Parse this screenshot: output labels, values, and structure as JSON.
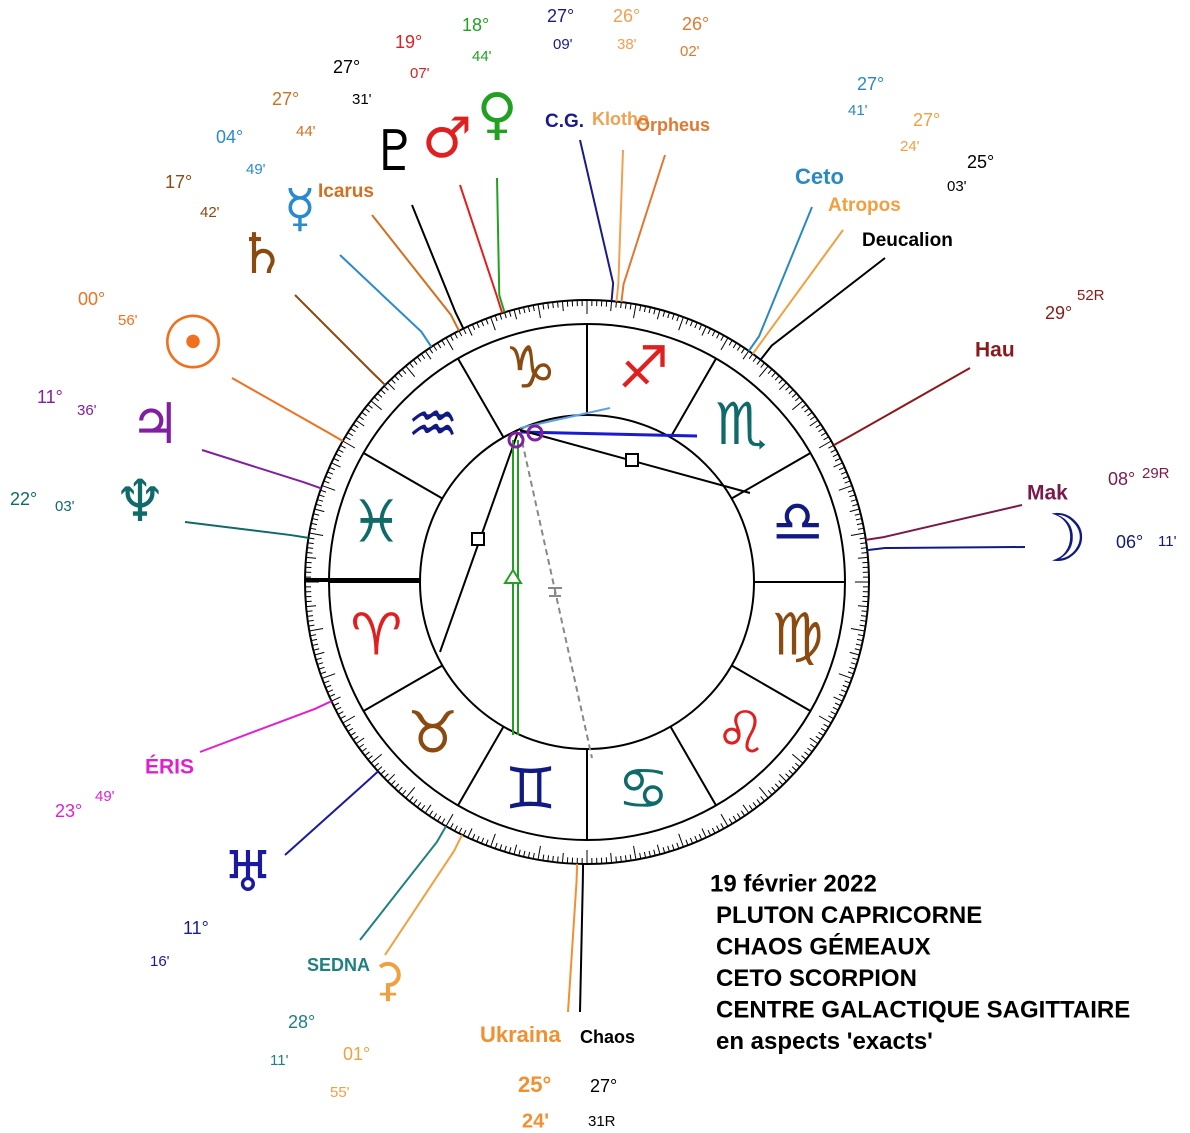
{
  "signs": [
    {
      "glyph": "♑",
      "color": "#8a4a10"
    },
    {
      "glyph": "♐",
      "color": "#e02020"
    },
    {
      "glyph": "♏",
      "color": "#106a6a"
    },
    {
      "glyph": "♎",
      "color": "#101a80"
    },
    {
      "glyph": "♍",
      "color": "#8a4a10"
    },
    {
      "glyph": "♌",
      "color": "#e02020"
    },
    {
      "glyph": "♋",
      "color": "#106a6a"
    },
    {
      "glyph": "♊",
      "color": "#101a80"
    },
    {
      "glyph": "♉",
      "color": "#8a4a10"
    },
    {
      "glyph": "♈",
      "color": "#e02020"
    },
    {
      "glyph": "♓",
      "color": "#106a6a"
    },
    {
      "glyph": "♒",
      "color": "#101a80"
    }
  ],
  "bodies": [
    {
      "label": "C.G.",
      "deg": "27°",
      "min": "09'",
      "color": "#1a1a8c"
    },
    {
      "label": "Klotho",
      "deg": "26°",
      "min": "38'",
      "color": "#f0a050"
    },
    {
      "label": "Orpheus",
      "deg": "26°",
      "min": "02'",
      "color": "#e07830"
    },
    {
      "label": "♀",
      "deg": "18°",
      "min": "44'",
      "color": "#22a022"
    },
    {
      "label": "♂",
      "deg": "19°",
      "min": "07'",
      "color": "#e02020"
    },
    {
      "label": "♇",
      "deg": "27°",
      "min": "31'",
      "color": "#000000"
    },
    {
      "label": "Icarus",
      "deg": "27°",
      "min": "44'",
      "color": "#d07020"
    },
    {
      "label": "☿",
      "deg": "04°",
      "min": "49'",
      "color": "#2a8ad0"
    },
    {
      "label": "♄",
      "deg": "17°",
      "min": "42'",
      "color": "#8a4a10"
    },
    {
      "label": "☉",
      "deg": "00°",
      "min": "56'",
      "color": "#f07020"
    },
    {
      "label": "♃",
      "deg": "11°",
      "min": "36'",
      "color": "#8020a0"
    },
    {
      "label": "♆",
      "deg": "22°",
      "min": "03'",
      "color": "#106a6a"
    },
    {
      "label": "Ceto",
      "deg": "27°",
      "min": "41'",
      "color": "#2a8ac0"
    },
    {
      "label": "Atropos",
      "deg": "27°",
      "min": "24'",
      "color": "#f0a040"
    },
    {
      "label": "Deucalion",
      "deg": "25°",
      "min": "03'",
      "color": "#000000"
    },
    {
      "label": "Hau",
      "deg": "29°",
      "min": "52R",
      "color": "#8a1a1a"
    },
    {
      "label": "Mak",
      "deg": "08°",
      "min": "29R",
      "color": "#7a1a4a"
    },
    {
      "label": "☽",
      "deg": "06°",
      "min": "11'",
      "color": "#101a80"
    },
    {
      "label": "ÉRIS",
      "deg": "23°",
      "min": "49'",
      "color": "#e020d0"
    },
    {
      "label": "♅",
      "deg": "11°",
      "min": "16'",
      "color": "#1a1aa0"
    },
    {
      "label": "SEDNA",
      "deg": "28°",
      "min": "11'",
      "color": "#208080"
    },
    {
      "label": "⚳",
      "deg": "01°",
      "min": "55'",
      "color": "#f0a040"
    },
    {
      "label": "Ukraina",
      "deg": "25°",
      "min": "24'",
      "color": "#f09030"
    },
    {
      "label": "Chaos",
      "deg": "27°",
      "min": "31R",
      "color": "#000000"
    }
  ],
  "caption": [
    "19 février 2022",
    "PLUTON CAPRICORNE",
    "CHAOS GÉMEAUX",
    "CETO SCORPION",
    "CENTRE GALACTIQUE SAGITTAIRE",
    "en aspects 'exacts'"
  ]
}
